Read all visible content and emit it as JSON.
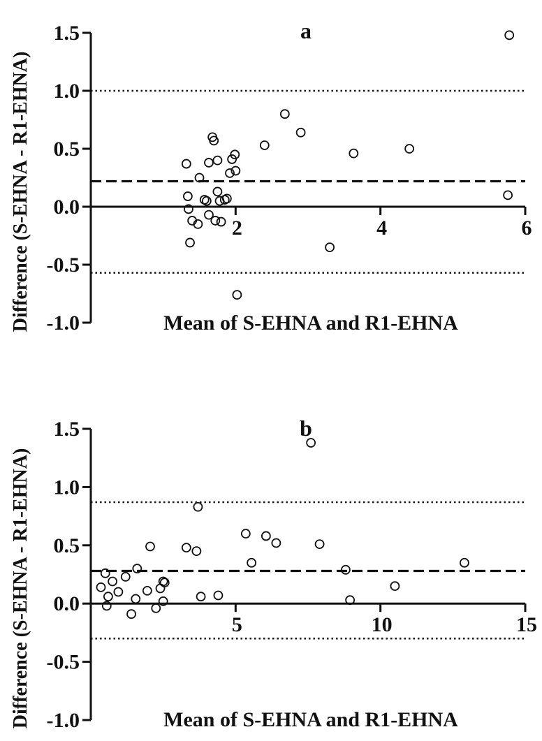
{
  "chart_data": [
    {
      "type": "scatter",
      "panel_label": "a",
      "xlabel": "Mean of S-EHNA and R1-EHNA",
      "ylabel": "Difference (S-EHNA - R1-EHNA)",
      "xlim": [
        0,
        6
      ],
      "ylim": [
        -1.0,
        1.5
      ],
      "xticks": [
        2,
        4,
        6
      ],
      "xtick_labels": [
        "2",
        "4",
        "6"
      ],
      "yticks": [
        1.5,
        1.0,
        0.5,
        0.0,
        -0.5,
        -1.0
      ],
      "ytick_labels": [
        "1.5",
        "1.0",
        "0.5",
        "0.0",
        "-0.5",
        "-1.0"
      ],
      "reference_lines": [
        {
          "style": "dashed",
          "y": 0.22
        },
        {
          "style": "dotted",
          "y": 1.0
        },
        {
          "style": "dotted",
          "y": -0.57
        }
      ],
      "points": [
        [
          1.35,
          -0.02
        ],
        [
          1.37,
          -0.31
        ],
        [
          1.4,
          -0.12
        ],
        [
          1.48,
          -0.15
        ],
        [
          1.6,
          0.05
        ],
        [
          1.63,
          -0.07
        ],
        [
          1.75,
          0.13
        ],
        [
          1.8,
          -0.13
        ],
        [
          1.85,
          0.06
        ],
        [
          1.32,
          0.37
        ],
        [
          1.34,
          0.09
        ],
        [
          1.5,
          0.25
        ],
        [
          1.57,
          0.06
        ],
        [
          1.63,
          0.38
        ],
        [
          1.68,
          0.6
        ],
        [
          1.7,
          0.57
        ],
        [
          1.72,
          -0.12
        ],
        [
          1.75,
          0.4
        ],
        [
          1.78,
          0.05
        ],
        [
          1.88,
          0.07
        ],
        [
          1.92,
          0.29
        ],
        [
          1.95,
          0.41
        ],
        [
          1.99,
          0.45
        ],
        [
          2.0,
          0.31
        ],
        [
          2.02,
          -0.76
        ],
        [
          2.4,
          0.53
        ],
        [
          2.68,
          0.8
        ],
        [
          2.9,
          0.64
        ],
        [
          3.3,
          -0.35
        ],
        [
          3.63,
          0.46
        ],
        [
          4.4,
          0.5
        ],
        [
          5.78,
          1.48
        ],
        [
          5.76,
          0.1
        ]
      ]
    },
    {
      "type": "scatter",
      "panel_label": "b",
      "xlabel": "Mean of S-EHNA and R1-EHNA",
      "ylabel": "Difference (S-EHNA - R1-EHNA)",
      "xlim": [
        0,
        15
      ],
      "ylim": [
        -1.0,
        1.5
      ],
      "xticks": [
        5,
        10,
        15
      ],
      "xtick_labels": [
        "5",
        "10",
        "15"
      ],
      "yticks": [
        1.5,
        1.0,
        0.5,
        0.0,
        -0.5,
        -1.0
      ],
      "ytick_labels": [
        "1.5",
        "1.0",
        "0.5",
        "0.0",
        "-0.5",
        "-1.0"
      ],
      "reference_lines": [
        {
          "style": "dashed",
          "y": 0.28
        },
        {
          "style": "dotted",
          "y": 0.87
        },
        {
          "style": "dotted",
          "y": -0.3
        }
      ],
      "points": [
        [
          0.35,
          0.14
        ],
        [
          0.5,
          0.26
        ],
        [
          0.55,
          -0.02
        ],
        [
          0.6,
          0.06
        ],
        [
          0.75,
          0.19
        ],
        [
          0.95,
          0.1
        ],
        [
          1.2,
          0.23
        ],
        [
          1.4,
          -0.09
        ],
        [
          1.55,
          0.04
        ],
        [
          1.6,
          0.3
        ],
        [
          1.95,
          0.11
        ],
        [
          2.05,
          0.49
        ],
        [
          2.25,
          -0.04
        ],
        [
          2.4,
          0.13
        ],
        [
          2.5,
          0.19
        ],
        [
          2.55,
          0.18
        ],
        [
          2.5,
          0.02
        ],
        [
          3.3,
          0.48
        ],
        [
          3.65,
          0.45
        ],
        [
          3.7,
          0.83
        ],
        [
          3.8,
          0.06
        ],
        [
          4.4,
          0.07
        ],
        [
          5.35,
          0.6
        ],
        [
          5.55,
          0.35
        ],
        [
          6.05,
          0.58
        ],
        [
          6.4,
          0.52
        ],
        [
          7.6,
          1.38
        ],
        [
          7.9,
          0.51
        ],
        [
          8.8,
          0.29
        ],
        [
          8.95,
          0.03
        ],
        [
          10.5,
          0.15
        ],
        [
          12.9,
          0.35
        ]
      ]
    }
  ]
}
